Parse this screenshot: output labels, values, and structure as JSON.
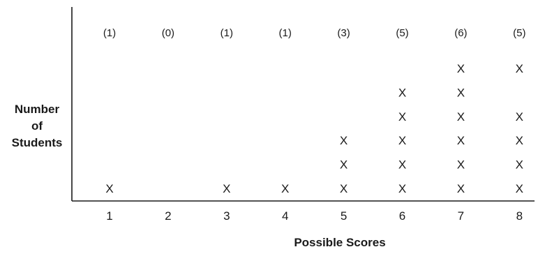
{
  "chart_data": {
    "type": "scatter",
    "title": "",
    "ylabel_lines": [
      "Number",
      "of",
      "Students"
    ],
    "xlabel": "Possible Scores",
    "categories": [
      "1",
      "2",
      "3",
      "4",
      "5",
      "6",
      "7",
      "8"
    ],
    "count_labels": [
      "(1)",
      "(0)",
      "(1)",
      "(1)",
      "(3)",
      "(5)",
      "(6)",
      "(5)"
    ],
    "mark_symbol": "X",
    "marks": [
      {
        "x": 1,
        "levels": [
          1
        ]
      },
      {
        "x": 2,
        "levels": []
      },
      {
        "x": 3,
        "levels": [
          1
        ]
      },
      {
        "x": 4,
        "levels": [
          1
        ]
      },
      {
        "x": 5,
        "levels": [
          1,
          2,
          3
        ]
      },
      {
        "x": 6,
        "levels": [
          1,
          2,
          3,
          4,
          5
        ]
      },
      {
        "x": 7,
        "levels": [
          1,
          2,
          3,
          4,
          5,
          6
        ]
      },
      {
        "x": 8,
        "levels": [
          1,
          2,
          3,
          4,
          6
        ]
      }
    ],
    "grid": false,
    "legend": "none"
  }
}
